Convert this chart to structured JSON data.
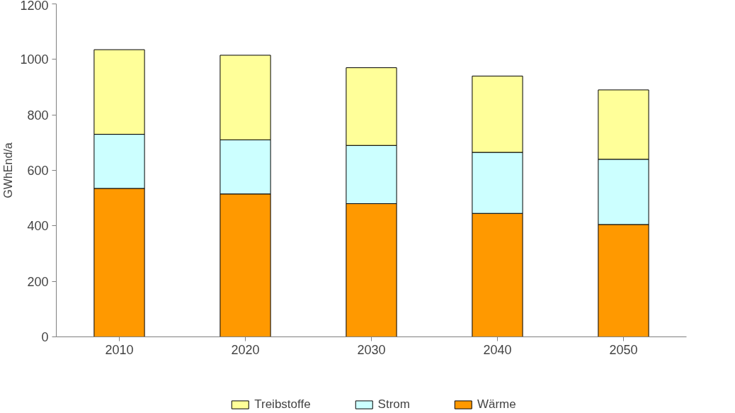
{
  "chart_data": {
    "type": "bar",
    "stacked": true,
    "ylabel": "GWhEnd/a",
    "categories": [
      "2010",
      "2020",
      "2030",
      "2040",
      "2050"
    ],
    "series": [
      {
        "name": "Wärme",
        "color": "#ff9900",
        "values": [
          535,
          515,
          480,
          445,
          405
        ]
      },
      {
        "name": "Strom",
        "color": "#ccffff",
        "values": [
          195,
          195,
          210,
          220,
          235
        ]
      },
      {
        "name": "Treibstoffe",
        "color": "#ffff99",
        "values": [
          305,
          305,
          280,
          275,
          250
        ]
      }
    ],
    "ylim": [
      0,
      1200
    ],
    "yticks": [
      0,
      200,
      400,
      600,
      800,
      1000,
      1200
    ],
    "grid": false,
    "legend": "bottom"
  }
}
